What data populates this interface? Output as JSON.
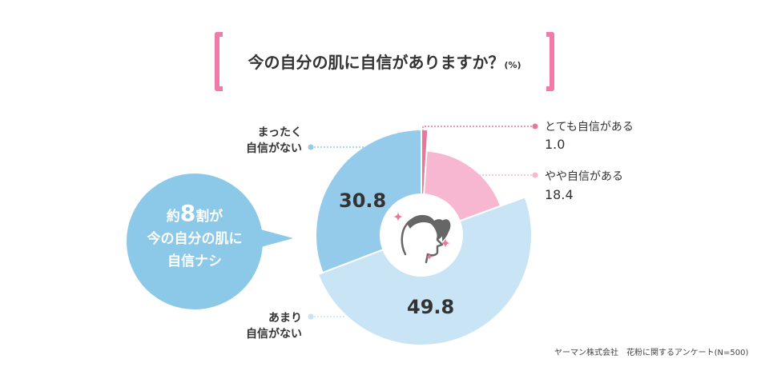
{
  "title": {
    "main": "今の自分の肌に自信がありますか？",
    "unit": "(%)"
  },
  "chart_data": {
    "type": "pie",
    "title": "今の自分の肌に自信がありますか？(%)",
    "series": [
      {
        "name": "とても自信がある",
        "value": 1.0,
        "color": "#e8779f"
      },
      {
        "name": "やや自信がある",
        "value": 18.4,
        "color": "#f8b7d0"
      },
      {
        "name": "あまり自信がない",
        "value": 49.8,
        "color": "#c9e4f4"
      },
      {
        "name": "まったく自信がない",
        "value": 30.8,
        "color": "#94cbea"
      }
    ],
    "center_icon": "woman-profile-icon"
  },
  "labels": {
    "very_confident": "とても自信がある",
    "very_confident_value": "1.0",
    "somewhat_confident": "やや自信がある",
    "somewhat_confident_value": "18.4",
    "not_very_line1": "あまり",
    "not_very_line2": "自信がない",
    "not_very_value": "49.8",
    "not_at_all_line1": "まったく",
    "not_at_all_line2": "自信がない",
    "not_at_all_value": "30.8"
  },
  "bubble": {
    "line1_prefix": "約",
    "line1_big": "8",
    "line1_suffix": "割が",
    "line2": "今の自分の肌に",
    "line3": "自信ナシ"
  },
  "source": "ヤーマン株式会社　花粉に関するアンケート(N=500)"
}
